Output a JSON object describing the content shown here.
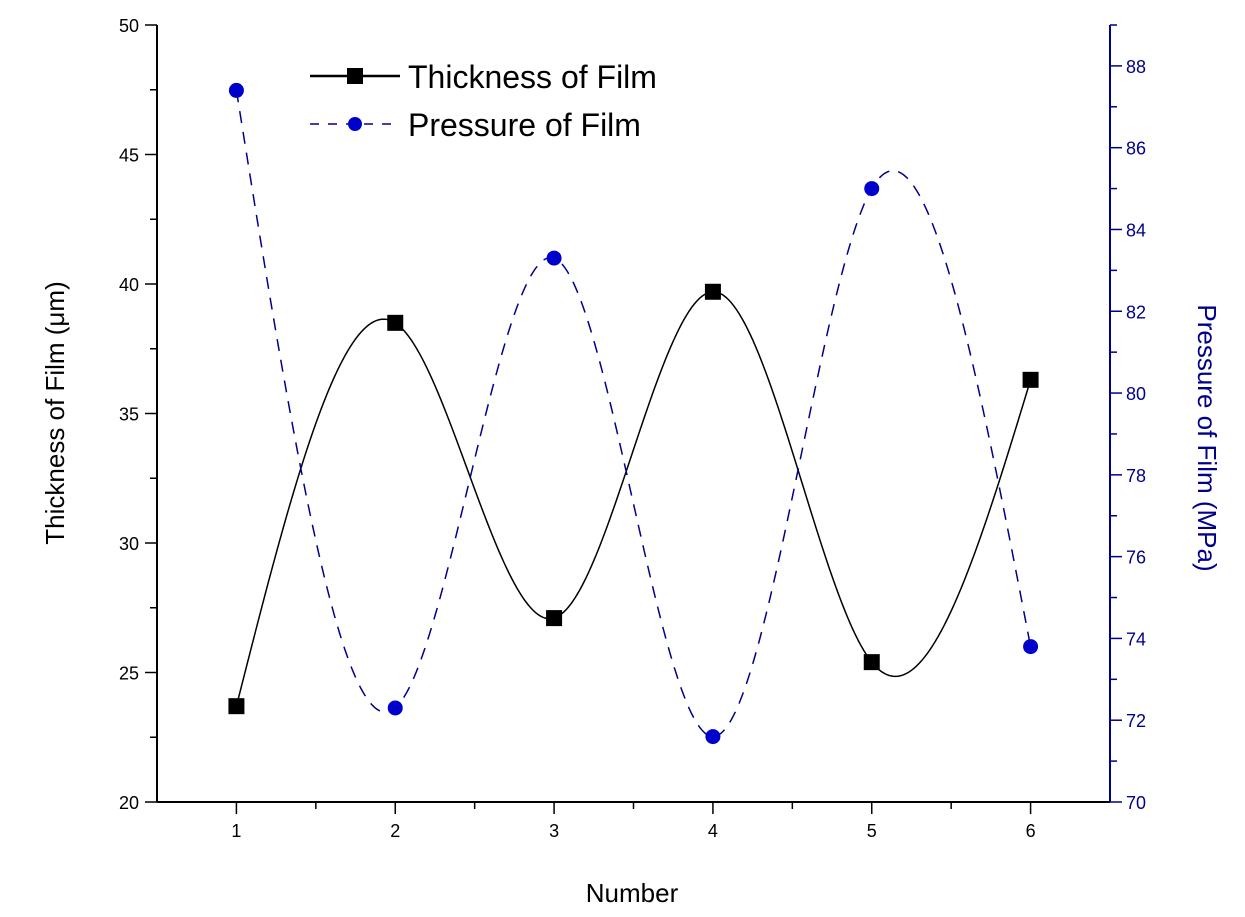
{
  "chart_data": {
    "type": "line",
    "xlabel": "Number",
    "ylabel_left": "Thickness of Film (μm)",
    "ylabel_right": "Pressure of Film (MPa)",
    "x": [
      1,
      2,
      3,
      4,
      5,
      6
    ],
    "xlim": [
      0.5,
      6.5
    ],
    "xticks": [
      "1",
      "2",
      "3",
      "4",
      "5",
      "6"
    ],
    "ylim_left": [
      20,
      50
    ],
    "yticks_left": [
      "20",
      "25",
      "30",
      "35",
      "40",
      "45",
      "50"
    ],
    "ylim_right": [
      70,
      89
    ],
    "yticks_right": [
      "70",
      "72",
      "74",
      "76",
      "78",
      "80",
      "82",
      "84",
      "86",
      "88"
    ],
    "left_axis_color": "#000000",
    "right_axis_color": "#00008B",
    "legend_position": "top-left",
    "grid": false,
    "series": [
      {
        "name": "Thickness of Film",
        "axis": "left",
        "values": [
          23.7,
          38.5,
          27.1,
          39.7,
          25.4,
          36.3
        ],
        "color": "#000000",
        "marker": "square",
        "line_style": "solid"
      },
      {
        "name": "Pressure of Film",
        "axis": "right",
        "values": [
          87.4,
          72.3,
          83.3,
          71.6,
          85.0,
          73.8
        ],
        "color": "#0000CD",
        "line_color": "#00008B",
        "marker": "circle",
        "line_style": "dashed"
      }
    ]
  }
}
